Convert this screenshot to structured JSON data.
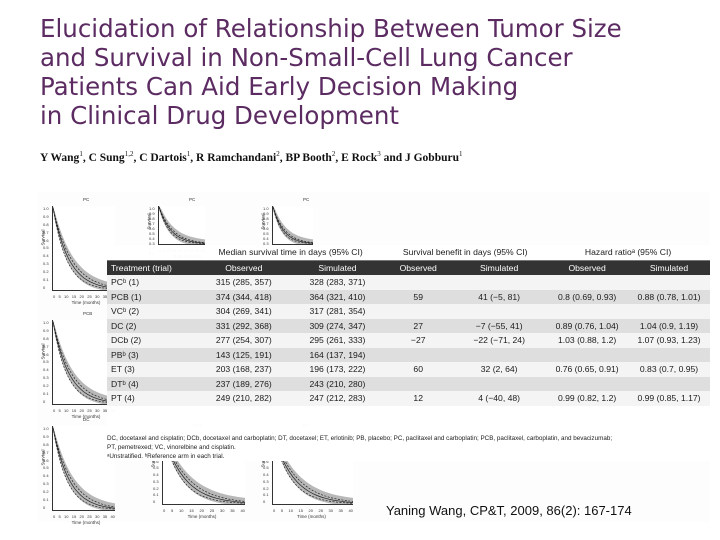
{
  "title_lines": [
    "Elucidation of Relationship Between Tumor Size",
    "and Survival in Non-Small-Cell Lung Cancer",
    "Patients Can Aid Early Decision Making",
    "in Clinical Drug Development"
  ],
  "authors": [
    {
      "name": "Y Wang",
      "aff": "1"
    },
    {
      "name": "C Sung",
      "aff": "1,2"
    },
    {
      "name": "C Dartois",
      "aff": "1"
    },
    {
      "name": "R Ramchandani",
      "aff": "2"
    },
    {
      "name": "BP Booth",
      "aff": "2"
    },
    {
      "name": "E Rock",
      "aff": "3"
    },
    {
      "name": "J Gobburu",
      "aff": "1"
    }
  ],
  "authors_sep": ", ",
  "authors_and": " and ",
  "plots": {
    "tick_labels": [
      "1.0",
      "0.9",
      "0.8",
      "0.7",
      "0.6",
      "0.5",
      "0.4",
      "0.3",
      "0.2",
      "0.1",
      "0"
    ],
    "x_ticks": [
      "0",
      "5",
      "10",
      "15",
      "20",
      "25",
      "30",
      "35",
      "40"
    ],
    "x_label": "Time (months)",
    "y_label": "Survival",
    "panel_titles": [
      "PC",
      "PCB",
      "DC",
      "DCb",
      "ET"
    ]
  },
  "table": {
    "group_headers": [
      "Median survival time in days (95% CI)",
      "Survival benefit in days (95% CI)",
      "Hazard ratioᵃ (95% CI)"
    ],
    "sub_headers": [
      "Treatment (trial)",
      "Observed",
      "Simulated",
      "Observed",
      "Simulated",
      "Observed",
      "Simulated"
    ],
    "rows": [
      [
        "PCᵇ (1)",
        "315 (285, 357)",
        "328 (283, 371)",
        "",
        "",
        "",
        ""
      ],
      [
        "PCB (1)",
        "374 (344, 418)",
        "364 (321, 410)",
        "59",
        "41 (−5, 81)",
        "0.8 (0.69, 0.93)",
        "0.88 (0.78, 1.01)"
      ],
      [
        "VCᵇ (2)",
        "304 (269, 341)",
        "317 (281, 354)",
        "",
        "",
        "",
        ""
      ],
      [
        "DC (2)",
        "331 (292, 368)",
        "309 (274, 347)",
        "27",
        "−7 (−55, 41)",
        "0.89 (0.76, 1.04)",
        "1.04 (0.9, 1.19)"
      ],
      [
        "DCb (2)",
        "277 (254, 307)",
        "295 (261, 333)",
        "−27",
        "−22 (−71, 24)",
        "1.03 (0.88, 1.2)",
        "1.07 (0.93, 1.23)"
      ],
      [
        "PBᵇ (3)",
        "143 (125, 191)",
        "164 (137, 194)",
        "",
        "",
        "",
        ""
      ],
      [
        "ET (3)",
        "203 (168, 237)",
        "196 (173, 222)",
        "60",
        "32 (2, 64)",
        "0.76 (0.65, 0.91)",
        "0.83 (0.7, 0.95)"
      ],
      [
        "DTᵇ (4)",
        "237 (189, 276)",
        "243 (210, 280)",
        "",
        "",
        "",
        ""
      ],
      [
        "PT (4)",
        "249 (210, 282)",
        "247 (212, 283)",
        "12",
        "4 (−40, 48)",
        "0.99 (0.82, 1.2)",
        "0.99 (0.85, 1.17)"
      ]
    ]
  },
  "footnote_lines": [
    "DC, docetaxel and cisplatin; DCb, docetaxel and carboplatin; DT, docetaxel; ET, erlotinib; PB, placebo; PC, paclitaxel and carboplatin; PCB, paclitaxel, carboplatin, and bevacizumab;",
    "PT, pemetrexed; VC, vinorelbine and cisplatin.",
    "ᵃUnstratified. ᵇReference arm in each trial."
  ],
  "citation": "Yaning Wang, CP&T, 2009, 86(2): 167-174",
  "colors": {
    "title": "#5b2b62",
    "table_header_bg": "#333333"
  }
}
